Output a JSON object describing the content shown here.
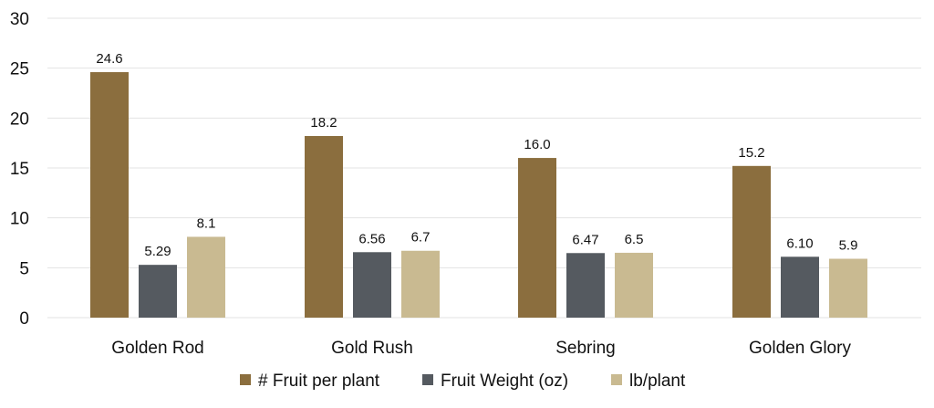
{
  "chart_data": {
    "type": "bar",
    "title": "",
    "xlabel": "",
    "ylabel": "",
    "ylim": [
      0,
      30
    ],
    "yticks": [
      0,
      5,
      10,
      15,
      20,
      25,
      30
    ],
    "grid": true,
    "legend_position": "bottom",
    "categories": [
      "Golden Rod",
      "Gold Rush",
      "Sebring",
      "Golden Glory"
    ],
    "series": [
      {
        "name": "# Fruit per plant",
        "color": "#8B6E3E",
        "values": [
          24.6,
          18.2,
          16.0,
          15.2
        ],
        "data_labels": [
          "24.6",
          "18.2",
          "16.0",
          "15.2"
        ]
      },
      {
        "name": "Fruit Weight (oz)",
        "color": "#555A60",
        "values": [
          5.29,
          6.56,
          6.47,
          6.1
        ],
        "data_labels": [
          "5.29",
          "6.56",
          "6.47",
          "6.10"
        ]
      },
      {
        "name": "lb/plant",
        "color": "#C9BA91",
        "values": [
          8.1,
          6.7,
          6.5,
          5.9
        ],
        "data_labels": [
          "8.1",
          "6.7",
          "6.5",
          "5.9"
        ]
      }
    ]
  }
}
